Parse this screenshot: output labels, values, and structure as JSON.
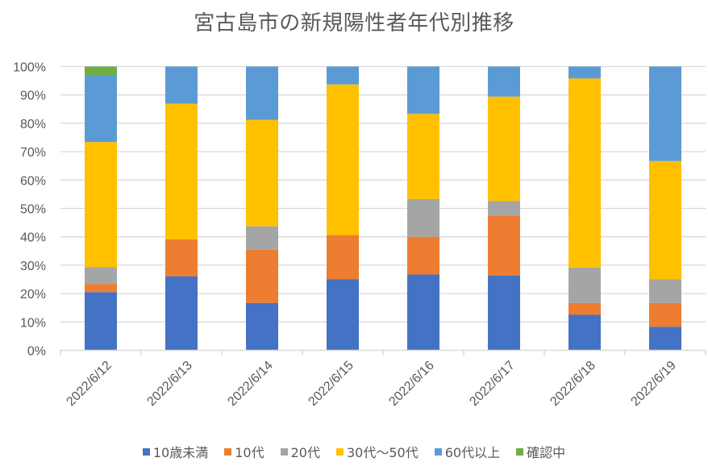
{
  "chart_data": {
    "type": "bar",
    "stacked": true,
    "percent_stacked": true,
    "title": "宮古島市の新規陽性者年代別推移",
    "xlabel": "",
    "ylabel": "",
    "ylim": [
      0,
      100
    ],
    "y_ticks": [
      "0%",
      "10%",
      "20%",
      "30%",
      "40%",
      "50%",
      "60%",
      "70%",
      "80%",
      "90%",
      "100%"
    ],
    "grid": true,
    "legend_position": "bottom",
    "categories": [
      "2022/6/12",
      "2022/6/13",
      "2022/6/14",
      "2022/6/15",
      "2022/6/16",
      "2022/6/17",
      "2022/6/18",
      "2022/6/19"
    ],
    "series": [
      {
        "name": "10歳未満",
        "color": "#4472C4",
        "values": [
          20.5,
          26.1,
          16.7,
          25.0,
          26.7,
          26.3,
          12.5,
          8.3
        ]
      },
      {
        "name": "10代",
        "color": "#ED7D31",
        "values": [
          2.9,
          13.0,
          18.7,
          15.6,
          13.3,
          21.1,
          4.2,
          8.4
        ]
      },
      {
        "name": "20代",
        "color": "#A5A5A5",
        "values": [
          5.9,
          0,
          8.3,
          0,
          13.3,
          5.2,
          12.5,
          8.3
        ]
      },
      {
        "name": "30代～50代",
        "color": "#FFC000",
        "values": [
          44.1,
          47.8,
          37.5,
          53.1,
          30.0,
          36.8,
          66.6,
          41.7
        ]
      },
      {
        "name": "60代以上",
        "color": "#5B9BD5",
        "values": [
          23.6,
          13.1,
          18.8,
          6.3,
          16.7,
          10.6,
          4.2,
          33.3
        ]
      },
      {
        "name": "確認中",
        "color": "#70AD47",
        "values": [
          3.0,
          0,
          0,
          0,
          0,
          0,
          0,
          0
        ]
      }
    ]
  }
}
